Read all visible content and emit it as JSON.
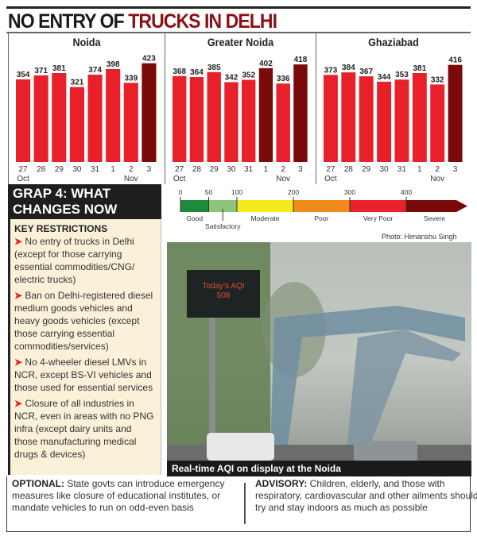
{
  "title": {
    "part1": "NO ENTRY OF ",
    "part2": "TRUCKS IN DELHI"
  },
  "colors": {
    "bar": "#e8202a",
    "highlight": "#7a0a0a"
  },
  "chart_data": [
    {
      "type": "bar",
      "title": "Noida",
      "categories": [
        "27",
        "28",
        "29",
        "30",
        "31",
        "1",
        "2",
        "3"
      ],
      "month_labels": [
        "Oct",
        "Nov"
      ],
      "values": [
        354,
        371,
        381,
        321,
        374,
        398,
        339,
        423
      ],
      "highlighted": [
        7
      ]
    },
    {
      "type": "bar",
      "title": "Greater Noida",
      "categories": [
        "27",
        "28",
        "29",
        "30",
        "31",
        "1",
        "2",
        "3"
      ],
      "month_labels": [
        "Oct",
        "Nov"
      ],
      "values": [
        368,
        364,
        385,
        342,
        352,
        402,
        336,
        418
      ],
      "highlighted": [
        5,
        7
      ]
    },
    {
      "type": "bar",
      "title": "Ghaziabad",
      "categories": [
        "27",
        "28",
        "29",
        "30",
        "31",
        "1",
        "2",
        "3"
      ],
      "month_labels": [
        "Oct",
        "Nov"
      ],
      "values": [
        373,
        384,
        367,
        344,
        353,
        381,
        332,
        416
      ],
      "highlighted": [
        7
      ]
    }
  ],
  "aqi_scale": {
    "ticks": [
      "0",
      "50",
      "100",
      "200",
      "300",
      "400"
    ],
    "bands": [
      {
        "label": "Good",
        "from": 0,
        "to": 50,
        "color": "#1e8a3c"
      },
      {
        "label": "Satisfactory",
        "from": 50,
        "to": 100,
        "color": "#8cc47a"
      },
      {
        "label": "Moderate",
        "from": 100,
        "to": 200,
        "color": "#f5e81c"
      },
      {
        "label": "Poor",
        "from": 200,
        "to": 300,
        "color": "#f08a1c"
      },
      {
        "label": "Very Poor",
        "from": 300,
        "to": 400,
        "color": "#e8202a"
      },
      {
        "label": "Severe",
        "from": 400,
        "to": 500,
        "color": "#7a0a0a"
      }
    ]
  },
  "grap": {
    "heading": "GRAP 4: WHAT CHANGES NOW",
    "key_label": "KEY RESTRICTIONS",
    "items": [
      "No entry of trucks in Delhi (except for those carrying essential commodities/CNG/ electric trucks)",
      "Ban on Delhi-registered diesel medium goods vehicles and heavy goods vehicles (except those carrying essential commodities/services)",
      "No 4-wheeler diesel LMVs in NCR, except BS-VI vehicles and those used for essential services",
      "Closure of all industries in NCR, even in areas with no PNG infra (except dairy units and those manufacturing medical drugs & devices)"
    ]
  },
  "photo": {
    "credit": "Photo: Himanshu Singh",
    "sign_text": "Today's AQI",
    "sign_value": "508",
    "caption": "Real-time AQI on display at the Noida"
  },
  "optional": {
    "label": "OPTIONAL:",
    "text": " State govts can introduce emergency measures like closure of educational institutes, or mandate vehicles to run on odd-even basis"
  },
  "advisory": {
    "label": "ADVISORY:",
    "text": " Children, elderly, and those with respiratory, cardiovascular and other ailments should try and stay indoors as much as possible"
  }
}
